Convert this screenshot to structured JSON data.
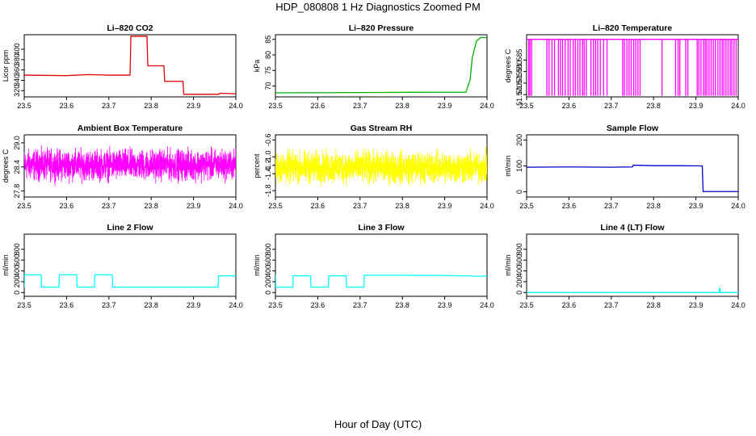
{
  "figure": {
    "title": "HDP_080808  1 Hz Diagnostics Zoomed PM",
    "xlabel": "Hour of Day (UTC)"
  },
  "chart_data": [
    {
      "type": "line",
      "title": "Li–820 CO2",
      "xlabel": "",
      "ylabel": "Licor ppm",
      "color": "#e00000",
      "xlim": [
        23.5,
        24.0
      ],
      "ylim": [
        308,
        428
      ],
      "xticks": [
        "23.5",
        "23.6",
        "23.7",
        "23.8",
        "23.9",
        "24.0"
      ],
      "yticks": [
        "320",
        "340",
        "360",
        "380",
        "400"
      ],
      "x": [
        23.5,
        23.6,
        23.65,
        23.7,
        23.75,
        23.752,
        23.79,
        23.792,
        23.83,
        23.832,
        23.875,
        23.877,
        23.96,
        23.962,
        24.0
      ],
      "y": [
        350,
        349,
        351,
        350,
        350,
        425,
        425,
        368,
        368,
        338,
        338,
        313,
        313,
        315,
        314
      ]
    },
    {
      "type": "line",
      "title": "Li–820 Pressure",
      "xlabel": "",
      "ylabel": "kPa",
      "color": "#00b000",
      "xlim": [
        23.5,
        24.0
      ],
      "ylim": [
        66.5,
        86.5
      ],
      "xticks": [
        "23.5",
        "23.6",
        "23.7",
        "23.8",
        "23.9",
        "24.0"
      ],
      "yticks": [
        "70",
        "75",
        "80",
        "85"
      ],
      "x": [
        23.5,
        23.7,
        23.85,
        23.95,
        23.96,
        23.965,
        23.975,
        23.985,
        24.0
      ],
      "y": [
        67.8,
        67.9,
        68.0,
        68.0,
        72,
        79,
        84.5,
        85.6,
        85.6
      ]
    },
    {
      "type": "line",
      "title": "Li–820 Temperature",
      "xlabel": "",
      "ylabel": "degrees C",
      "color": "#ff00ff",
      "xlim": [
        23.5,
        24.0
      ],
      "ylim": [
        51.569,
        51.596
      ],
      "xticks": [
        "23.5",
        "23.6",
        "23.7",
        "23.8",
        "23.9",
        "24.0"
      ],
      "yticks": [
        "51.570",
        "51.575",
        "51.580",
        "51.585"
      ],
      "baseline": 51.594,
      "low": 51.5695,
      "dropouts": [
        23.505,
        23.508,
        23.512,
        23.548,
        23.553,
        23.56,
        23.566,
        23.575,
        23.58,
        23.585,
        23.591,
        23.598,
        23.603,
        23.61,
        23.615,
        23.621,
        23.626,
        23.632,
        23.636,
        23.641,
        23.652,
        23.658,
        23.663,
        23.668,
        23.674,
        23.682,
        23.69,
        23.727,
        23.731,
        23.737,
        23.742,
        23.747,
        23.753,
        23.758,
        23.763,
        23.768,
        23.82,
        23.852,
        23.858,
        23.862,
        23.876,
        23.881,
        23.903,
        23.907,
        23.912,
        23.918,
        23.922,
        23.926,
        23.931,
        23.936,
        23.941,
        23.946,
        23.952,
        23.957,
        23.962,
        23.966,
        23.971,
        23.976,
        23.981,
        23.985,
        23.99,
        23.995
      ]
    },
    {
      "type": "line",
      "title": "Ambient Box Temperature",
      "xlabel": "",
      "ylabel": "degrees C",
      "color": "#ff00ff",
      "xlim": [
        23.5,
        24.0
      ],
      "ylim": [
        27.65,
        29.2
      ],
      "xticks": [
        "23.5",
        "23.6",
        "23.7",
        "23.8",
        "23.9",
        "24.0"
      ],
      "yticks": [
        "27.8",
        "28.4",
        "29.0"
      ],
      "noise": {
        "center": 28.45,
        "spread": 0.55,
        "points": 1800
      }
    },
    {
      "type": "line",
      "title": "Gas Stream RH",
      "xlabel": "",
      "ylabel": "percent",
      "color": "#ffff00",
      "xlim": [
        23.5,
        24.0
      ],
      "ylim": [
        -1.95,
        -0.48
      ],
      "xticks": [
        "23.5",
        "23.6",
        "23.7",
        "23.8",
        "23.9",
        "24.0"
      ],
      "yticks": [
        "-1.8",
        "-1.4",
        "-1.2",
        "-1.0",
        "-0.6"
      ],
      "noise": {
        "center": -1.25,
        "spread": 0.55,
        "points": 1800
      }
    },
    {
      "type": "line",
      "title": "Sample Flow",
      "xlabel": "",
      "ylabel": "ml/min",
      "color": "#0000cc",
      "xlim": [
        23.5,
        24.0
      ],
      "ylim": [
        -20,
        220
      ],
      "xticks": [
        "23.5",
        "23.6",
        "23.7",
        "23.8",
        "23.9",
        "24.0"
      ],
      "yticks": [
        "0",
        "100",
        "200"
      ],
      "x": [
        23.5,
        23.6,
        23.7,
        23.75,
        23.752,
        23.8,
        23.85,
        23.915,
        23.917,
        23.95,
        24.0
      ],
      "y": [
        95,
        96,
        95,
        96,
        103,
        101,
        101,
        100,
        1,
        1,
        1
      ]
    },
    {
      "type": "line",
      "title": "Line 2 Flow",
      "xlabel": "",
      "ylabel": "ml/min",
      "color": "#00ffff",
      "xlim": [
        23.5,
        24.0
      ],
      "ylim": [
        -70,
        1080
      ],
      "xticks": [
        "23.5",
        "23.6",
        "23.7",
        "23.8",
        "23.9",
        "24.0"
      ],
      "yticks": [
        "0",
        "200",
        "400",
        "600",
        "800"
      ],
      "x": [
        23.5,
        23.501,
        23.54,
        23.541,
        23.582,
        23.583,
        23.624,
        23.625,
        23.666,
        23.667,
        23.708,
        23.709,
        23.958,
        23.959,
        24.0
      ],
      "y": [
        100,
        330,
        330,
        100,
        100,
        330,
        330,
        100,
        100,
        330,
        330,
        100,
        100,
        310,
        310
      ]
    },
    {
      "type": "line",
      "title": "Line 3 Flow",
      "xlabel": "",
      "ylabel": "ml/min",
      "color": "#00ffff",
      "xlim": [
        23.5,
        24.0
      ],
      "ylim": [
        -70,
        1080
      ],
      "xticks": [
        "23.5",
        "23.6",
        "23.7",
        "23.8",
        "23.9",
        "24.0"
      ],
      "yticks": [
        "0",
        "200",
        "400",
        "600",
        "800"
      ],
      "x": [
        23.5,
        23.501,
        23.541,
        23.542,
        23.583,
        23.584,
        23.625,
        23.626,
        23.667,
        23.668,
        23.709,
        23.71,
        23.8,
        23.9,
        24.0
      ],
      "y": [
        330,
        100,
        100,
        310,
        310,
        100,
        100,
        310,
        310,
        100,
        100,
        320,
        320,
        315,
        300
      ]
    },
    {
      "type": "line",
      "title": "Line 4 (LT) Flow",
      "xlabel": "",
      "ylabel": "ml/min",
      "color": "#00ffff",
      "xlim": [
        23.5,
        24.0
      ],
      "ylim": [
        -70,
        1080
      ],
      "xticks": [
        "23.5",
        "23.6",
        "23.7",
        "23.8",
        "23.9",
        "24.0"
      ],
      "yticks": [
        "0",
        "200",
        "400",
        "600",
        "800"
      ],
      "x": [
        23.5,
        23.955,
        23.956,
        23.957,
        23.958,
        24.0
      ],
      "y": [
        0,
        0,
        80,
        80,
        0,
        0
      ]
    }
  ]
}
